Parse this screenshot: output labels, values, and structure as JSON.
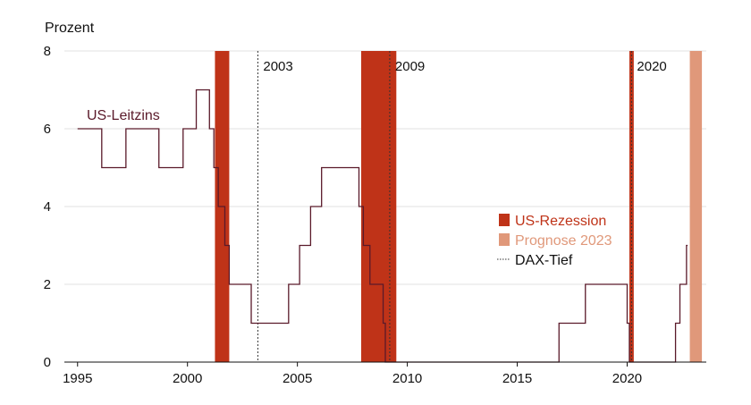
{
  "chart_data": {
    "type": "line",
    "ylabel": "Prozent",
    "xlim": [
      1994.4,
      2023.6
    ],
    "ylim": [
      0,
      8
    ],
    "grid": true,
    "x_ticks": [
      1995,
      2000,
      2005,
      2010,
      2015,
      2020
    ],
    "x_tick_labels": [
      "1995",
      "2000",
      "2005",
      "2010",
      "2015",
      "2020"
    ],
    "y_ticks": [
      0,
      2,
      4,
      6,
      8
    ],
    "y_tick_labels": [
      "0",
      "2",
      "4",
      "6",
      "8"
    ],
    "series": [
      {
        "name": "US-Leitzins",
        "color": "#5a1a2a",
        "step": true,
        "points": [
          [
            1995.0,
            6.0
          ],
          [
            1996.1,
            5.0
          ],
          [
            1997.2,
            6.0
          ],
          [
            1998.7,
            5.0
          ],
          [
            1999.8,
            6.0
          ],
          [
            2000.4,
            7.0
          ],
          [
            2001.0,
            6.0
          ],
          [
            2001.2,
            5.0
          ],
          [
            2001.4,
            4.0
          ],
          [
            2001.7,
            3.0
          ],
          [
            2001.9,
            2.0
          ],
          [
            2002.9,
            1.0
          ],
          [
            2004.6,
            2.0
          ],
          [
            2005.1,
            3.0
          ],
          [
            2005.6,
            4.0
          ],
          [
            2006.1,
            5.0
          ],
          [
            2007.8,
            4.0
          ],
          [
            2008.0,
            3.0
          ],
          [
            2008.3,
            2.0
          ],
          [
            2008.9,
            1.0
          ],
          [
            2009.0,
            0.0
          ],
          [
            2016.9,
            1.0
          ],
          [
            2018.1,
            2.0
          ],
          [
            2020.0,
            1.0
          ],
          [
            2020.1,
            0.0
          ],
          [
            2022.2,
            1.0
          ],
          [
            2022.4,
            2.0
          ],
          [
            2022.7,
            3.0
          ],
          [
            2022.75,
            3.0
          ]
        ]
      }
    ],
    "series_label": "US-Leitzins",
    "recessions": [
      {
        "start": 2001.25,
        "end": 2001.9
      },
      {
        "start": 2007.9,
        "end": 2009.5
      },
      {
        "start": 2020.1,
        "end": 2020.3
      }
    ],
    "forecast": {
      "start": 2022.85,
      "end": 2023.4,
      "label": "Prognose 2023"
    },
    "dax_lows": [
      {
        "x": 2003.2,
        "label": "2003"
      },
      {
        "x": 2009.2,
        "label": "2009"
      },
      {
        "x": 2020.2,
        "label": "2020"
      }
    ],
    "legend": {
      "position": "right",
      "items": [
        {
          "label": "US-Rezession",
          "color": "#bf3318",
          "kind": "box"
        },
        {
          "label": "Prognose 2023",
          "color": "#e0987a",
          "kind": "box"
        },
        {
          "label": "DAX-Tief",
          "color": "#333333",
          "kind": "dotted-line"
        }
      ]
    }
  }
}
